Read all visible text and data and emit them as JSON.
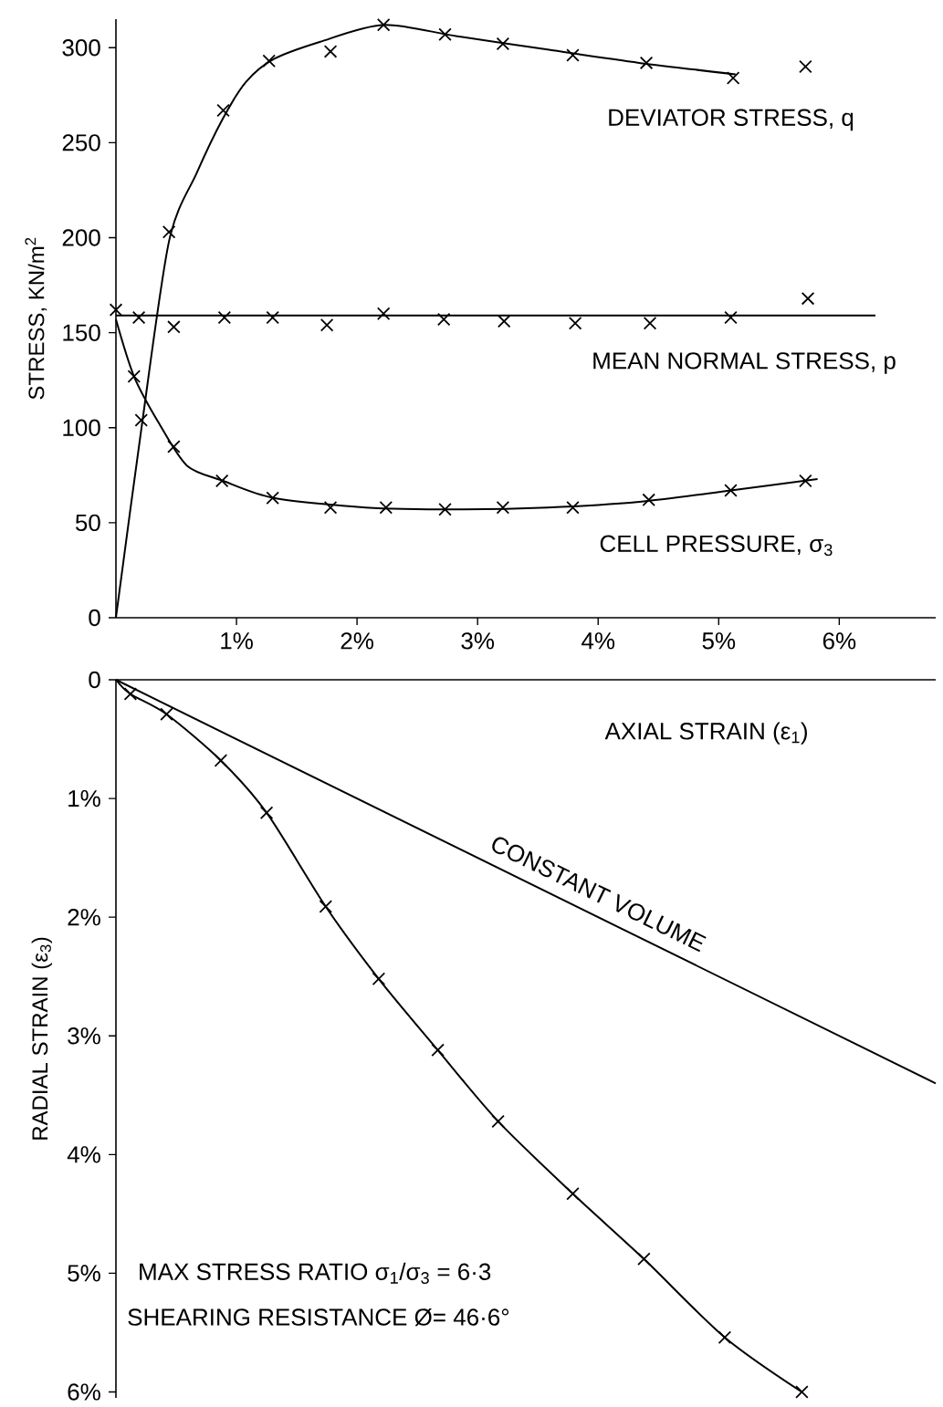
{
  "chart_data": [
    {
      "type": "line",
      "ylabel": "STRESS, KN/m$^{2}$",
      "xlim": [
        0,
        6.8
      ],
      "ylim": [
        0,
        315
      ],
      "xticks": [
        {
          "value": 1,
          "label": "1%"
        },
        {
          "value": 2,
          "label": "2%"
        },
        {
          "value": 3,
          "label": "3%"
        },
        {
          "value": 4,
          "label": "4%"
        },
        {
          "value": 5,
          "label": "5%"
        },
        {
          "value": 6,
          "label": "6%"
        }
      ],
      "yticks": [
        0,
        50,
        100,
        150,
        200,
        250,
        300
      ],
      "grid": false,
      "legend": false,
      "series": [
        {
          "name": "DEVIATOR STRESS, q",
          "marker": "none",
          "color": "#000000",
          "x": [
            0,
            0.21,
            0.44,
            0.67,
            0.89,
            1.08,
            1.31,
            1.69,
            2.22,
            2.83,
            3.58,
            4.34,
            5.14
          ],
          "values": [
            0,
            99,
            198,
            234,
            263,
            282,
            294,
            303,
            312,
            306,
            299,
            292,
            286
          ]
        },
        {
          "type": "scatter",
          "marker": "cross",
          "color": "#000000",
          "x": [
            0.21,
            0.44,
            0.89,
            1.27,
            1.78,
            2.22,
            2.73,
            3.21,
            3.79,
            4.4,
            5.12,
            5.72
          ],
          "values": [
            104,
            203,
            267,
            293,
            298,
            312,
            307,
            302,
            296,
            292,
            284,
            290
          ]
        },
        {
          "name": "MEAN NORMAL STRESS, p",
          "marker": "none",
          "color": "#000000",
          "x": [
            0,
            6.3
          ],
          "values": [
            159,
            159
          ]
        },
        {
          "type": "scatter",
          "marker": "cross",
          "color": "#000000",
          "x": [
            0,
            0.19,
            0.48,
            0.9,
            1.3,
            1.75,
            2.22,
            2.72,
            3.22,
            3.81,
            4.43,
            5.1,
            5.74
          ],
          "values": [
            162,
            158,
            153,
            158,
            158,
            154,
            160,
            157,
            156,
            155,
            155,
            158,
            168
          ]
        },
        {
          "name": "CELL PRESSURE, σ$_{3}$",
          "marker": "none",
          "color": "#000000",
          "x": [
            0,
            0.15,
            0.36,
            0.59,
            0.89,
            1.31,
            2.07,
            2.83,
            3.58,
            4.34,
            5.1,
            5.82
          ],
          "values": [
            157,
            127,
            102,
            80,
            72,
            63,
            58,
            57,
            58,
            61,
            67,
            73
          ]
        },
        {
          "type": "scatter",
          "marker": "cross",
          "color": "#000000",
          "x": [
            0.15,
            0.48,
            0.88,
            1.3,
            1.78,
            2.24,
            2.73,
            3.21,
            3.79,
            4.42,
            5.1,
            5.72
          ],
          "values": [
            127,
            90,
            72,
            63,
            58,
            58,
            57,
            58,
            58,
            62,
            67,
            72
          ]
        }
      ]
    },
    {
      "type": "line",
      "xlabel": "AXIAL STRAIN (ε$_{1}$)",
      "ylabel": "RADIAL STRAIN (ε$_{3}$)",
      "xlim": [
        0,
        6.8
      ],
      "ylim": [
        6.05,
        0
      ],
      "tick_labels": "y",
      "yticks": [
        0,
        {
          "value": 1,
          "label": "1%"
        },
        {
          "value": 2,
          "label": "2%"
        },
        {
          "value": 3,
          "label": "3%"
        },
        {
          "value": 4,
          "label": "4%"
        },
        {
          "value": 5,
          "label": "5%"
        },
        {
          "value": 6,
          "label": "6%"
        }
      ],
      "grid": false,
      "legend": false,
      "annotations": [
        "MAX STRESS RATIO σ$_{1}$/σ$_{3}$ = 6·3",
        "SHEARING RESISTANCE Ø= 46·6°"
      ],
      "series": [
        {
          "marker": "none",
          "color": "#000000",
          "x": [
            0,
            0.12,
            0.42,
            0.87,
            1.25,
            1.74,
            2.18,
            2.67,
            3.17,
            3.79,
            4.38,
            5.05,
            5.69
          ],
          "values": [
            0,
            0.12,
            0.29,
            0.68,
            1.12,
            1.91,
            2.52,
            3.12,
            3.72,
            4.33,
            4.88,
            5.54,
            6.0
          ]
        },
        {
          "type": "scatter",
          "marker": "cross",
          "color": "#000000",
          "x": [
            0.12,
            0.42,
            0.87,
            1.25,
            1.74,
            2.18,
            2.67,
            3.17,
            3.79,
            4.38,
            5.05,
            5.69
          ],
          "values": [
            0.12,
            0.29,
            0.68,
            1.12,
            1.91,
            2.52,
            3.12,
            3.72,
            4.33,
            4.88,
            5.54,
            6.0
          ]
        },
        {
          "name": "CONSTANT VOLUME",
          "marker": "none",
          "color": "#000000",
          "x": [
            0,
            6.8
          ],
          "values": [
            0,
            3.4
          ]
        }
      ]
    }
  ]
}
